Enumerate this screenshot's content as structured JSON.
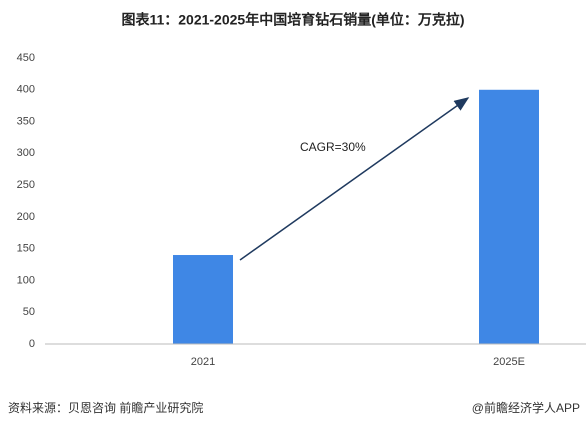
{
  "chart_data": {
    "type": "bar",
    "title": "图表11：2021-2025年中国培育钻石销量(单位：万克拉)",
    "categories": [
      "2021",
      "2025E"
    ],
    "values": [
      140,
      400
    ],
    "color": "#3f87e5",
    "ylim": [
      0,
      450
    ],
    "yticks": [
      0,
      50,
      100,
      150,
      200,
      250,
      300,
      350,
      400,
      450
    ],
    "grid": false,
    "annotation": "CAGR=30%",
    "source": "资料来源：贝恩咨询 前瞻产业研究院",
    "credit": "@前瞻经济学人APP"
  }
}
